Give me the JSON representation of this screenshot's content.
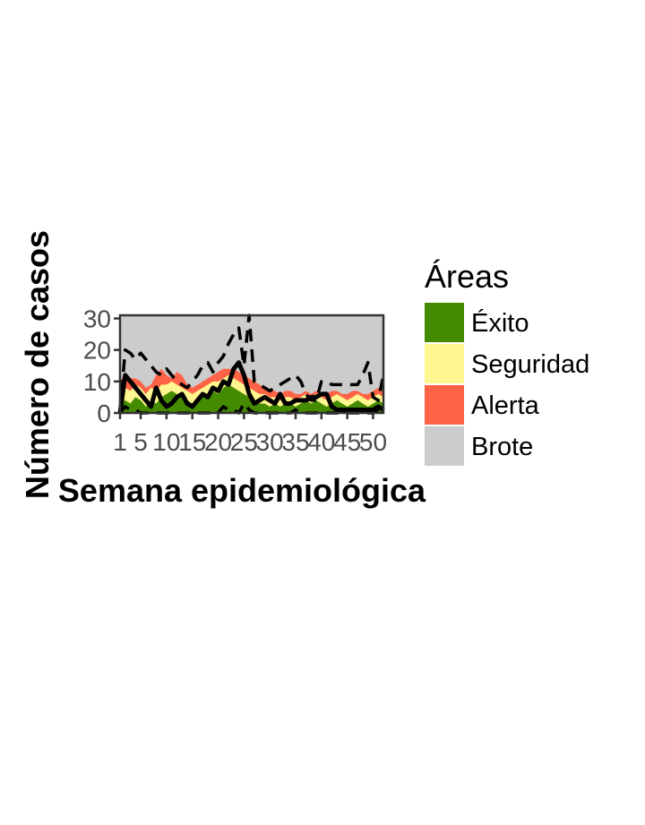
{
  "chart_data": {
    "type": "area",
    "title": "",
    "xlabel": "Semana epidemiológica",
    "ylabel": "Número de casos",
    "xlim": [
      1,
      52
    ],
    "ylim": [
      0,
      31
    ],
    "x_ticks": [
      1,
      5,
      10,
      15,
      20,
      25,
      30,
      35,
      40,
      45,
      50
    ],
    "x_tick_labels": [
      "1",
      "5",
      "10",
      "15",
      "20",
      "25",
      "30",
      "35",
      "40",
      "45",
      "50"
    ],
    "y_ticks": [
      0,
      10,
      20,
      30
    ],
    "y_tick_labels": [
      "0",
      "10",
      "20",
      "30"
    ],
    "grid": false,
    "legend_placement": "right",
    "legend_title": "Áreas",
    "x": [
      1,
      2,
      3,
      4,
      5,
      6,
      7,
      8,
      9,
      10,
      11,
      12,
      13,
      14,
      15,
      16,
      17,
      18,
      19,
      20,
      21,
      22,
      23,
      24,
      25,
      26,
      27,
      28,
      29,
      30,
      31,
      32,
      33,
      34,
      35,
      36,
      37,
      38,
      39,
      40,
      41,
      42,
      43,
      44,
      45,
      46,
      47,
      48,
      49,
      50,
      51,
      52
    ],
    "areas": [
      {
        "name": "Éxito",
        "color": "#458B00",
        "values": [
          3,
          4,
          3,
          5,
          4,
          2,
          4,
          3,
          5,
          6,
          7,
          6,
          5,
          4,
          3,
          4,
          5,
          6,
          7,
          6,
          8,
          9,
          8,
          7,
          6,
          5,
          4,
          3,
          3,
          2,
          3,
          2,
          3,
          3,
          2,
          3,
          4,
          3,
          4,
          3,
          2,
          3,
          4,
          3,
          2,
          3,
          4,
          3,
          2,
          3,
          4,
          3
        ]
      },
      {
        "name": "Seguridad",
        "color": "#FFF68F",
        "values": [
          6,
          8,
          7,
          9,
          8,
          6,
          8,
          7,
          9,
          9,
          10,
          9,
          8,
          7,
          6,
          7,
          8,
          9,
          10,
          10,
          11,
          12,
          11,
          10,
          9,
          8,
          7,
          6,
          6,
          5,
          5,
          4,
          5,
          5,
          4,
          5,
          6,
          5,
          6,
          5,
          4,
          5,
          6,
          5,
          4,
          5,
          6,
          5,
          4,
          5,
          6,
          5
        ]
      },
      {
        "name": "Alerta",
        "color": "#FF6347",
        "values": [
          10,
          12,
          11,
          11,
          10,
          8,
          9,
          12,
          14,
          12,
          11,
          13,
          12,
          9,
          8,
          9,
          10,
          11,
          12,
          13,
          14,
          14,
          14,
          13,
          12,
          11,
          10,
          9,
          8,
          7,
          7,
          6,
          7,
          7,
          6,
          6,
          7,
          6,
          7,
          6,
          6,
          7,
          7,
          6,
          6,
          7,
          7,
          6,
          6,
          7,
          8,
          7
        ]
      },
      {
        "name": "Brote",
        "color": "#CCCCCC",
        "values": []
      }
    ],
    "series": [
      {
        "style": "solid",
        "values": [
          0,
          12,
          10,
          8,
          6,
          4,
          2,
          8,
          4,
          2,
          3,
          5,
          6,
          3,
          2,
          4,
          6,
          5,
          8,
          7,
          10,
          9,
          14,
          16,
          12,
          6,
          3,
          4,
          5,
          4,
          3,
          6,
          3,
          3,
          4,
          4,
          4,
          5,
          5,
          6,
          6,
          2,
          1,
          1,
          1,
          1,
          1,
          1,
          1,
          1,
          2,
          1
        ]
      },
      {
        "style": "dashed",
        "values": [
          0,
          20,
          19,
          17,
          19,
          17,
          15,
          13,
          12,
          14,
          12,
          10,
          9,
          8,
          10,
          12,
          15,
          16,
          13,
          16,
          18,
          22,
          25,
          27,
          15,
          31,
          10,
          9,
          8,
          7,
          8,
          9,
          10,
          11,
          12,
          10,
          6,
          4,
          4,
          10,
          10,
          9,
          9,
          9,
          9,
          9,
          9,
          12,
          16,
          5,
          4,
          12
        ]
      },
      {
        "style": "dashed",
        "values": [
          0,
          2,
          1,
          1,
          0,
          0,
          0,
          0,
          0,
          0,
          0,
          0,
          0,
          0,
          0,
          0,
          0,
          0,
          0,
          0,
          2,
          1,
          1,
          0,
          3,
          1,
          0,
          0,
          0,
          0,
          0,
          0,
          0,
          0,
          1,
          0,
          0,
          0,
          0,
          0,
          0,
          0,
          0,
          0,
          0,
          0,
          0,
          0,
          0,
          0,
          1,
          0
        ]
      }
    ]
  }
}
